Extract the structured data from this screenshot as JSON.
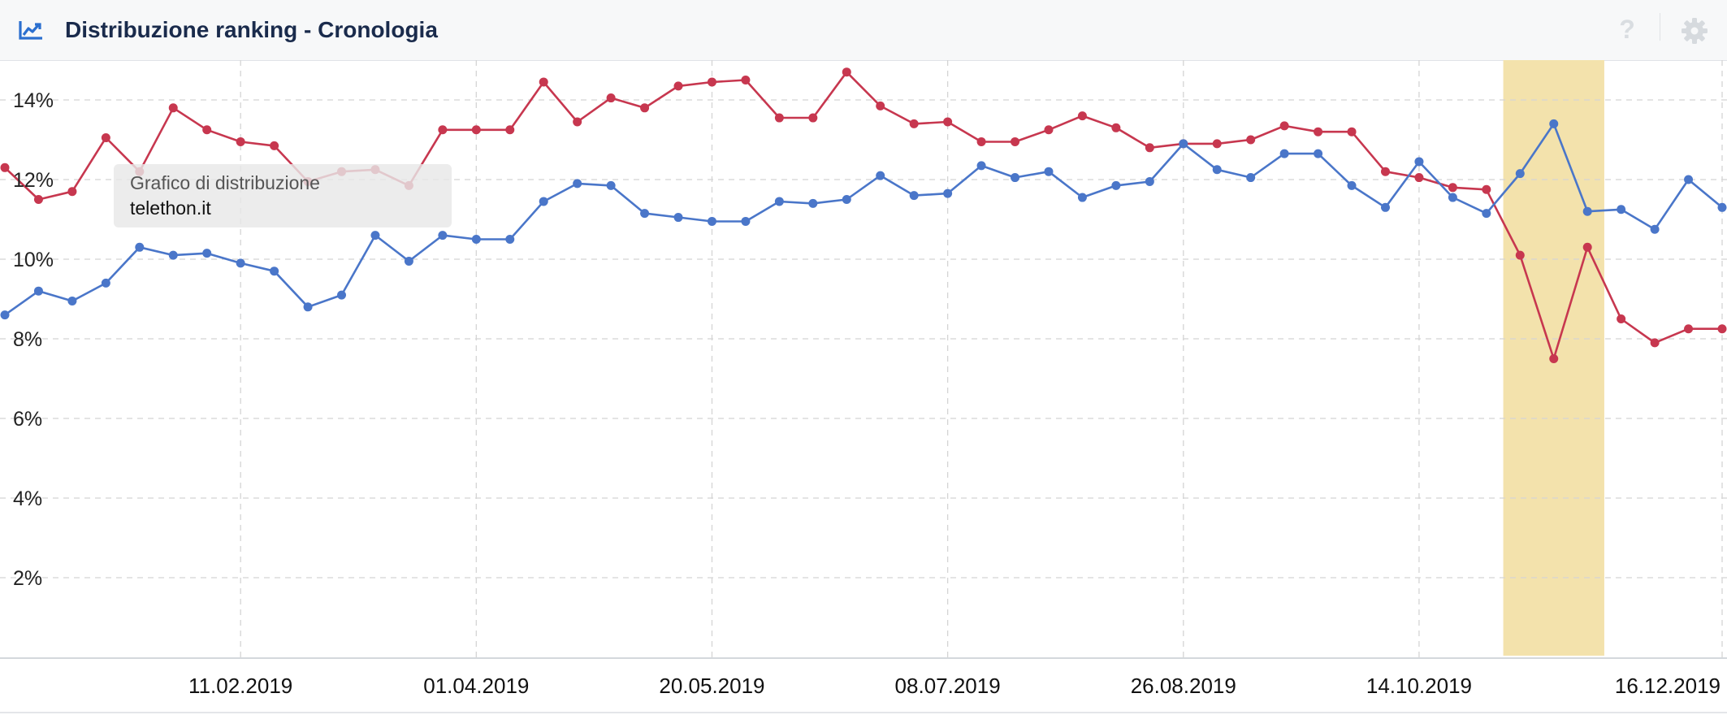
{
  "header": {
    "title": "Distribuzione ranking - Cronologia",
    "chart_icon": "line-chart-icon",
    "help_label": "?",
    "help_icon": "help-icon",
    "settings_icon": "gear-icon"
  },
  "tooltip": {
    "title": "Grafico di distribuzione",
    "value": "telethon.it"
  },
  "colors": {
    "red_series": "#c7374f",
    "blue_series": "#4a76c9",
    "highlight": "#f3e2ac",
    "grid": "#d4d4d4"
  },
  "chart_data": {
    "type": "line",
    "x": [
      "24.12.2018",
      "31.12.2018",
      "07.01.2019",
      "14.01.2019",
      "21.01.2019",
      "28.01.2019",
      "04.02.2019",
      "11.02.2019",
      "18.02.2019",
      "25.02.2019",
      "04.03.2019",
      "11.03.2019",
      "18.03.2019",
      "25.03.2019",
      "01.04.2019",
      "08.04.2019",
      "15.04.2019",
      "22.04.2019",
      "29.04.2019",
      "06.05.2019",
      "13.05.2019",
      "20.05.2019",
      "27.05.2019",
      "03.06.2019",
      "10.06.2019",
      "17.06.2019",
      "24.06.2019",
      "01.07.2019",
      "08.07.2019",
      "15.07.2019",
      "22.07.2019",
      "29.07.2019",
      "05.08.2019",
      "12.08.2019",
      "19.08.2019",
      "26.08.2019",
      "02.09.2019",
      "09.09.2019",
      "16.09.2019",
      "23.09.2019",
      "30.09.2019",
      "07.10.2019",
      "14.10.2019",
      "21.10.2019",
      "28.10.2019",
      "04.11.2019",
      "11.11.2019",
      "18.11.2019",
      "25.11.2019",
      "02.12.2019",
      "09.12.2019",
      "16.12.2019"
    ],
    "x_tick_labels": [
      "11.02.2019",
      "01.04.2019",
      "20.05.2019",
      "08.07.2019",
      "26.08.2019",
      "14.10.2019",
      "16.12.2019"
    ],
    "series": [
      {
        "color": "#c7374f",
        "values": [
          12.3,
          11.5,
          11.7,
          13.05,
          12.2,
          13.8,
          13.25,
          12.95,
          12.85,
          11.95,
          12.2,
          12.25,
          11.85,
          13.25,
          13.25,
          13.25,
          14.45,
          13.45,
          14.05,
          13.8,
          14.35,
          14.45,
          14.5,
          13.55,
          13.55,
          14.7,
          13.85,
          13.4,
          13.45,
          12.95,
          12.95,
          13.25,
          13.6,
          13.3,
          12.8,
          12.9,
          12.9,
          13.0,
          13.35,
          13.2,
          13.2,
          12.2,
          12.05,
          11.8,
          11.75,
          10.1,
          7.5,
          10.3,
          8.5,
          7.9,
          8.25,
          8.25
        ]
      },
      {
        "color": "#4a76c9",
        "values": [
          8.6,
          9.2,
          8.95,
          9.4,
          10.3,
          10.1,
          10.15,
          9.9,
          9.7,
          8.8,
          9.1,
          10.6,
          9.95,
          10.6,
          10.5,
          10.5,
          11.45,
          11.9,
          11.85,
          11.15,
          11.05,
          10.95,
          10.95,
          11.45,
          11.4,
          11.5,
          12.1,
          11.6,
          11.65,
          12.35,
          12.05,
          12.2,
          11.55,
          11.85,
          11.95,
          12.9,
          12.25,
          12.05,
          12.65,
          12.65,
          11.85,
          11.3,
          12.45,
          11.55,
          11.15,
          12.15,
          13.4,
          11.2,
          11.25,
          10.75,
          12.0,
          11.3
        ]
      }
    ],
    "ylim": [
      0,
      15
    ],
    "y_ticks": [
      2,
      4,
      6,
      8,
      10,
      12,
      14
    ],
    "y_tick_format": "%",
    "highlight_range": [
      "04.11.2019",
      "18.11.2019"
    ],
    "grid": true,
    "legend": "none"
  }
}
